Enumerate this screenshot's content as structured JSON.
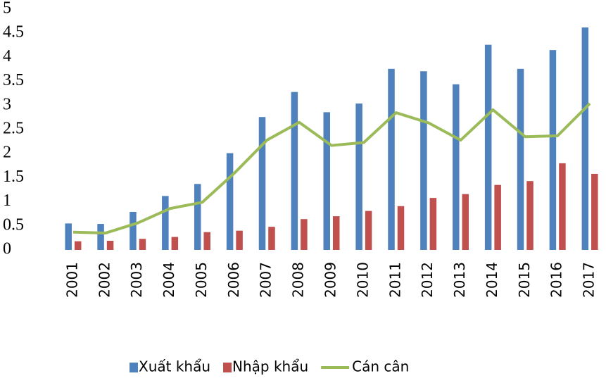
{
  "chart_data": {
    "type": "bar-line",
    "categories": [
      "2001",
      "2002",
      "2003",
      "2004",
      "2005",
      "2006",
      "2007",
      "2008",
      "2009",
      "2010",
      "2011",
      "2012",
      "2013",
      "2014",
      "2015",
      "2016",
      "2017"
    ],
    "series": [
      {
        "name": "Xuất khẩu",
        "color": "#4f81bd",
        "kind": "bar",
        "values": [
          0.55,
          0.54,
          0.79,
          1.12,
          1.37,
          2.01,
          2.76,
          3.28,
          2.86,
          3.04,
          3.76,
          3.71,
          3.44,
          4.26,
          3.76,
          4.15,
          4.62
        ]
      },
      {
        "name": "Nhập khẩu",
        "color": "#c0504d",
        "kind": "bar",
        "values": [
          0.18,
          0.19,
          0.23,
          0.27,
          0.37,
          0.4,
          0.48,
          0.64,
          0.7,
          0.81,
          0.91,
          1.08,
          1.16,
          1.35,
          1.43,
          1.8,
          1.58
        ]
      },
      {
        "name": "Cán cân",
        "color": "#9bbb59",
        "kind": "line",
        "values": [
          0.37,
          0.35,
          0.56,
          0.86,
          0.99,
          1.6,
          2.28,
          2.65,
          2.17,
          2.23,
          2.85,
          2.64,
          2.28,
          2.91,
          2.35,
          2.37,
          3.04
        ]
      }
    ],
    "ylim": [
      0,
      5
    ],
    "yticks": [
      0,
      0.5,
      1,
      1.5,
      2,
      2.5,
      3,
      3.5,
      4,
      4.5,
      5
    ],
    "legend": "bottom"
  }
}
